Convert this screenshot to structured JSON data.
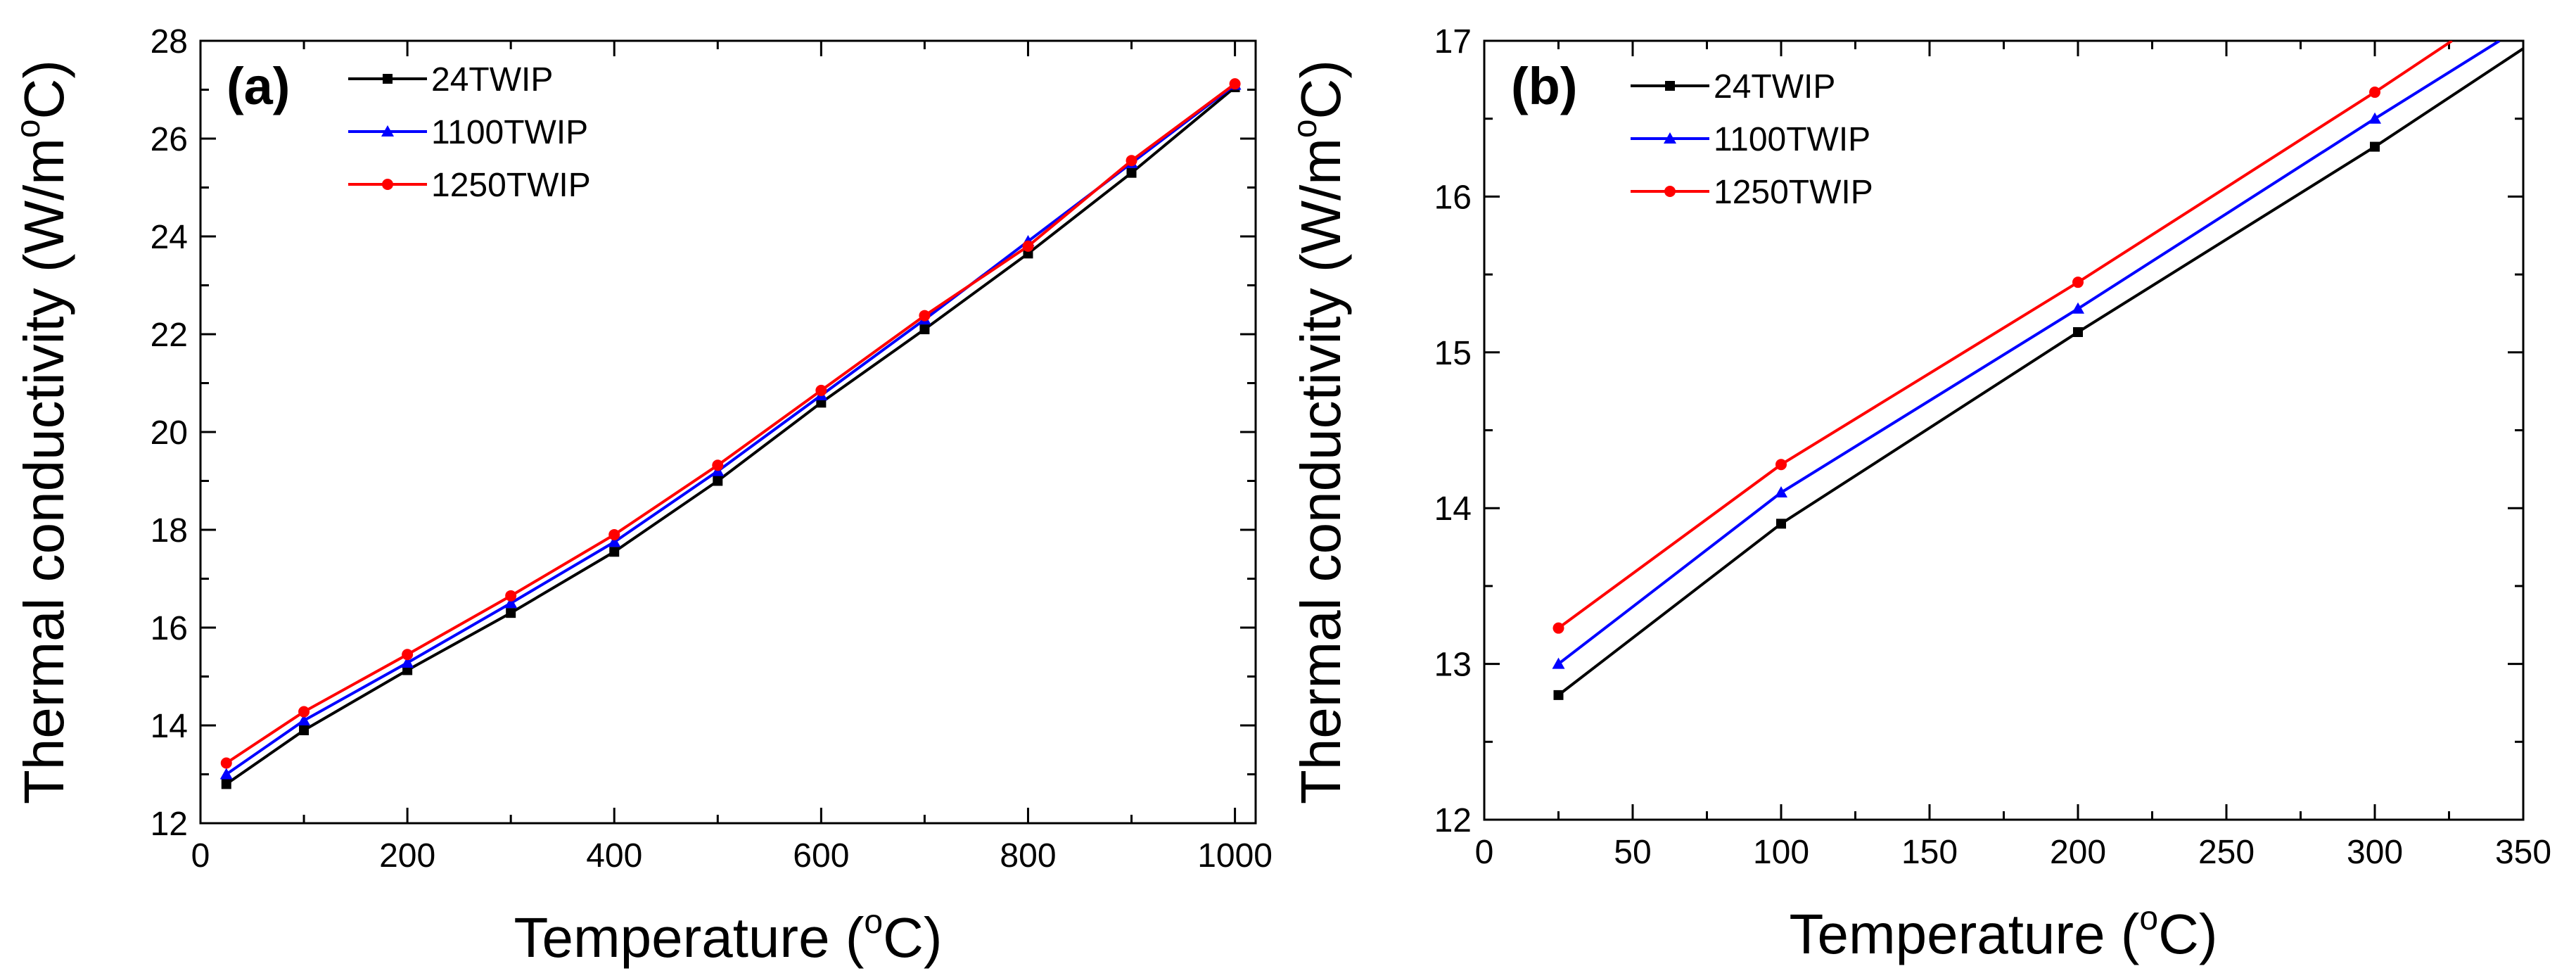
{
  "chart_data": [
    {
      "panel": "(a)",
      "type": "line",
      "xlabel": "Temperature",
      "xlabel_sup": "o",
      "xlabel_unit": "C)",
      "ylabel": "Thermal conductivity (W/m",
      "ylabel_sup": "o",
      "ylabel_unit": "C)",
      "xlim": [
        0,
        1020
      ],
      "ylim": [
        12,
        28
      ],
      "xticks": [
        0,
        200,
        400,
        600,
        800,
        1000
      ],
      "yticks": [
        12,
        14,
        16,
        18,
        20,
        22,
        24,
        26,
        28
      ],
      "x": [
        25,
        100,
        200,
        300,
        400,
        500,
        600,
        700,
        800,
        900,
        1000
      ],
      "series": [
        {
          "name": "24TWIP",
          "color": "#000000",
          "marker": "square",
          "values": [
            12.8,
            13.9,
            15.13,
            16.3,
            17.55,
            19.0,
            20.6,
            22.1,
            23.65,
            25.3,
            27.05
          ]
        },
        {
          "name": "1100TWIP",
          "color": "#0000ff",
          "marker": "triangle",
          "values": [
            13.0,
            14.1,
            15.28,
            16.5,
            17.75,
            19.2,
            20.75,
            22.3,
            23.9,
            25.5,
            27.1
          ]
        },
        {
          "name": "1250TWIP",
          "color": "#ff0000",
          "marker": "circle",
          "values": [
            13.23,
            14.28,
            15.45,
            16.65,
            17.9,
            19.32,
            20.85,
            22.38,
            23.8,
            25.55,
            27.12
          ]
        }
      ]
    },
    {
      "panel": "(b)",
      "type": "line",
      "xlabel": "Temperature",
      "xlabel_sup": "o",
      "xlabel_unit": "C)",
      "ylabel": "Thermal conductivity (W/m",
      "ylabel_sup": "o",
      "ylabel_unit": "C)",
      "xlim": [
        0,
        350
      ],
      "ylim": [
        12,
        17
      ],
      "xticks": [
        0,
        50,
        100,
        150,
        200,
        250,
        300,
        350
      ],
      "yticks": [
        12,
        13,
        14,
        15,
        16,
        17
      ],
      "x": [
        25,
        100,
        200,
        300
      ],
      "series": [
        {
          "name": "24TWIP",
          "color": "#000000",
          "marker": "square",
          "values": [
            12.8,
            13.9,
            15.13,
            16.32
          ],
          "extend_to": [
            350,
            16.95
          ]
        },
        {
          "name": "1100TWIP",
          "color": "#0000ff",
          "marker": "triangle",
          "values": [
            13.0,
            14.1,
            15.28,
            16.5
          ],
          "extend_to": [
            342,
            17.0
          ]
        },
        {
          "name": "1250TWIP",
          "color": "#ff0000",
          "marker": "circle",
          "values": [
            13.23,
            14.28,
            15.45,
            16.67
          ],
          "extend_to": [
            326,
            17.0
          ]
        }
      ]
    }
  ]
}
